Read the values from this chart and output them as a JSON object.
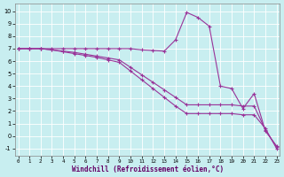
{
  "xlabel": "Windchill (Refroidissement éolien,°C)",
  "background_color": "#c8eef0",
  "line_color": "#993399",
  "xlim": [
    -0.3,
    23.3
  ],
  "ylim": [
    -1.6,
    10.6
  ],
  "xticks": [
    0,
    1,
    2,
    3,
    4,
    5,
    6,
    7,
    8,
    9,
    10,
    11,
    12,
    13,
    14,
    15,
    16,
    17,
    18,
    19,
    20,
    21,
    22,
    23
  ],
  "yticks": [
    -1,
    0,
    1,
    2,
    3,
    4,
    5,
    6,
    7,
    8,
    9,
    10
  ],
  "line1_x": [
    0,
    1,
    2,
    3,
    4,
    5,
    6,
    7,
    8,
    9,
    10,
    11,
    12,
    13,
    14,
    15,
    16,
    17,
    18,
    19,
    20,
    21,
    22,
    23
  ],
  "line1_y": [
    7.0,
    7.0,
    7.0,
    7.0,
    7.0,
    7.0,
    7.0,
    7.0,
    7.0,
    7.0,
    7.0,
    6.9,
    6.85,
    6.8,
    7.7,
    9.9,
    9.5,
    8.8,
    4.0,
    3.8,
    2.2,
    3.4,
    0.4,
    -0.8
  ],
  "line2_x": [
    0,
    1,
    2,
    3,
    4,
    5,
    6,
    7,
    8,
    9,
    10,
    11,
    12,
    13,
    14,
    15,
    16,
    17,
    18,
    19,
    20,
    21,
    22,
    23
  ],
  "line2_y": [
    7.0,
    7.0,
    7.0,
    6.9,
    6.8,
    6.7,
    6.55,
    6.4,
    6.25,
    6.1,
    5.5,
    4.9,
    4.3,
    3.7,
    3.1,
    2.5,
    2.5,
    2.5,
    2.5,
    2.5,
    2.4,
    2.4,
    0.5,
    -0.9
  ],
  "line3_x": [
    0,
    1,
    2,
    3,
    4,
    5,
    6,
    7,
    8,
    9,
    10,
    11,
    12,
    13,
    14,
    15,
    16,
    17,
    18,
    19,
    20,
    21,
    22,
    23
  ],
  "line3_y": [
    7.0,
    7.0,
    7.0,
    6.9,
    6.75,
    6.6,
    6.45,
    6.3,
    6.1,
    5.9,
    5.2,
    4.5,
    3.8,
    3.1,
    2.4,
    1.8,
    1.8,
    1.8,
    1.8,
    1.8,
    1.7,
    1.7,
    0.6,
    -1.0
  ]
}
